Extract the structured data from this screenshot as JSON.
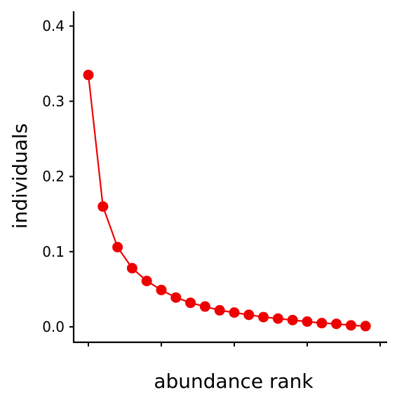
{
  "chart_data": {
    "type": "line",
    "xlabel": "abundance rank",
    "ylabel": "individuals",
    "ylim": [
      -0.02,
      0.42
    ],
    "xlim": [
      0,
      20
    ],
    "y_ticks": [
      0.0,
      0.1,
      0.2,
      0.3,
      0.4
    ],
    "y_tick_labels": [
      "0.0",
      "0.1",
      "0.2",
      "0.3",
      "0.4"
    ],
    "x_ticks": [
      1,
      6,
      11,
      16,
      21
    ],
    "x_tick_labels": [
      "",
      "",
      "",
      "",
      ""
    ],
    "grid": false,
    "legend": "none",
    "series": [
      {
        "color": "#ee0000",
        "x": [
          1,
          2,
          3,
          4,
          5,
          6,
          7,
          8,
          9,
          10,
          11,
          12,
          13,
          14,
          15,
          16,
          17,
          18,
          19,
          20
        ],
        "y": [
          0.335,
          0.16,
          0.106,
          0.078,
          0.061,
          0.049,
          0.039,
          0.032,
          0.027,
          0.022,
          0.019,
          0.016,
          0.013,
          0.011,
          0.009,
          0.007,
          0.005,
          0.004,
          0.002,
          0.001
        ]
      }
    ]
  }
}
